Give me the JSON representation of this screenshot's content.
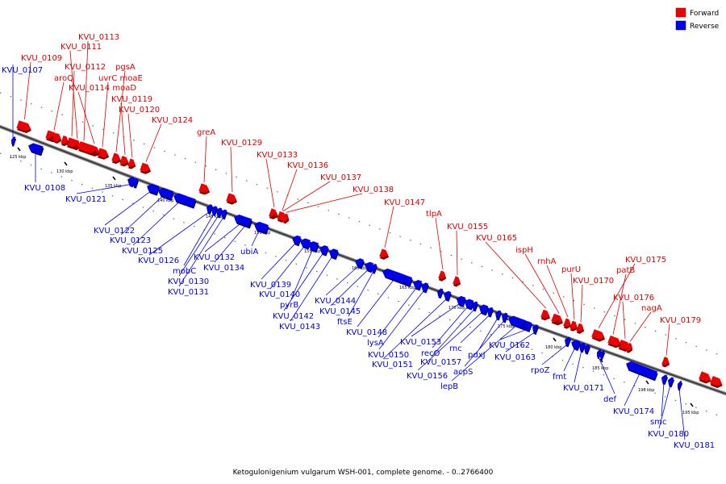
{
  "legend": {
    "forward_label": "Forward",
    "reverse_label": "Reverse",
    "forward_color": "#ee0000",
    "reverse_color": "#0000ee"
  },
  "caption": "Ketogulonigenium vulgarum WSH-001, complete genome. - 0..2766400",
  "ticks": [
    "125 kbp",
    "130 kbp",
    "135 kbp",
    "140 kbp",
    "145 kbp",
    "150 kbp",
    "155 kbp",
    "160 kbp",
    "165 kbp",
    "170 kbp",
    "175 kbp",
    "180 kbp",
    "185 kbp",
    "190 kbp",
    "195 kbp"
  ],
  "forward_genes": [
    "KVU_0113",
    "KVU_0111",
    "KVU_0109",
    "KVU_0112",
    "pgsA",
    "aroQ",
    "uvrC moaE",
    "KVU_0114 moaD",
    "KVU_0119",
    "KVU_0120",
    "KVU_0124",
    "greA",
    "KVU_0129",
    "KVU_0133",
    "KVU_0136",
    "KVU_0137",
    "KVU_0138",
    "KVU_0147",
    "tlpA",
    "KVU_0155",
    "KVU_0165",
    "ispH",
    "rnhA",
    "purU",
    "KVU_0170",
    "KVU_0175",
    "patB",
    "KVU_0176",
    "nagA",
    "KVU_0179"
  ],
  "reverse_genes": [
    "KVU_0107",
    "KVU_0108",
    "KVU_0121",
    "KVU_0122",
    "KVU_0123",
    "KVU_0125",
    "KVU_0126",
    "mobC",
    "KVU_0130",
    "KVU_0131",
    "KVU_0132",
    "KVU_0134",
    "ubiA",
    "KVU_0139",
    "KVU_0140",
    "pyrB",
    "KVU_0142",
    "KVU_0143",
    "KVU_0144",
    "KVU_0145",
    "ftsE",
    "KVU_0148",
    "lysA",
    "KVU_0150",
    "KVU_0151",
    "KVU_0153",
    "recO",
    "KVU_0157",
    "KVU_0156",
    "rnc",
    "pdxJ",
    "acpS",
    "lepB",
    "KVU_0162",
    "KVU_0163",
    "rpoZ",
    "fmt",
    "KVU_0171",
    "def",
    "KVU_0174",
    "smc",
    "KVU_0180",
    "KVU_0181"
  ]
}
